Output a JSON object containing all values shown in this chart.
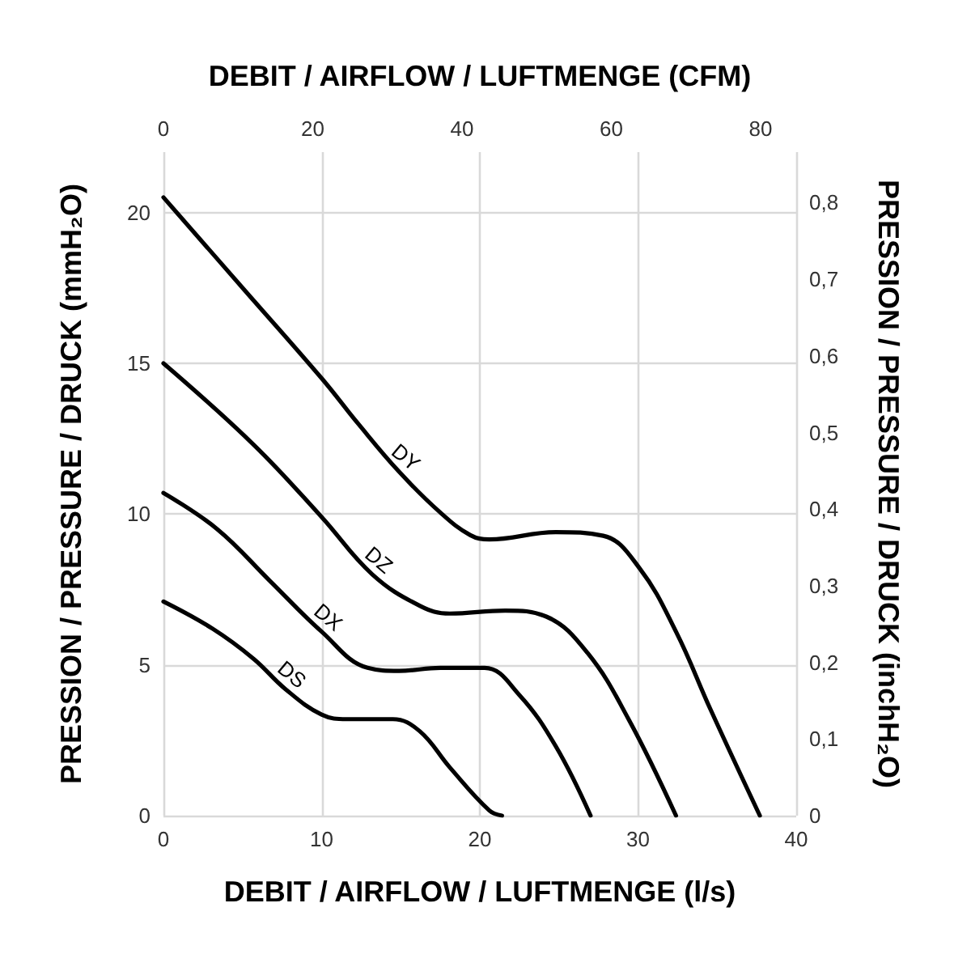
{
  "chart_data": {
    "type": "line",
    "xlabel": "DEBIT / AIRFLOW / LUFTMENGE (l/s)",
    "x2label": "DEBIT / AIRFLOW / LUFTMENGE (CFM)",
    "ylabel": "PRESSION / PRESSURE / DRUCK (mmH₂O)",
    "y2label": "PRESSION / PRESSURE / DRUCK (inchH₂O)",
    "xlim": [
      0,
      40
    ],
    "xticks": [
      0,
      10,
      20,
      30,
      40
    ],
    "x2lim": [
      0,
      84.76
    ],
    "x2ticks": [
      0,
      20,
      40,
      60,
      80
    ],
    "ylim": [
      0,
      22
    ],
    "yticks": [
      0,
      5,
      10,
      15,
      20
    ],
    "y2lim": [
      0,
      0.866
    ],
    "y2ticks": [
      0,
      {
        "value": 0.1,
        "label": "0,1"
      },
      {
        "value": 0.2,
        "label": "0,2"
      },
      {
        "value": 0.3,
        "label": "0,3"
      },
      {
        "value": 0.4,
        "label": "0,4"
      },
      {
        "value": 0.5,
        "label": "0,5"
      },
      {
        "value": 0.6,
        "label": "0,6"
      },
      {
        "value": 0.7,
        "label": "0,7"
      },
      {
        "value": 0.8,
        "label": "0,8"
      }
    ],
    "grid": true,
    "legend": false,
    "marker": "none",
    "line_style": "solid",
    "series": [
      {
        "name": "DY",
        "color": "#000000",
        "x": [
          0,
          5,
          10,
          12.3,
          14.9,
          17.5,
          19.4,
          20.6,
          24.8,
          27.8,
          30.1,
          32.4,
          34.6,
          37.7
        ],
        "values": [
          20.5,
          17.5,
          14.5,
          13.0,
          11.4,
          10.05,
          9.3,
          9.16,
          9.4,
          9.28,
          8.2,
          6.1,
          3.5,
          0
        ]
      },
      {
        "name": "DZ",
        "color": "#000000",
        "x": [
          0,
          5.7,
          10,
          13.2,
          16.2,
          18.1,
          21.6,
          24.2,
          26.8,
          29.4,
          32.4
        ],
        "values": [
          15.0,
          12.3,
          9.9,
          8.0,
          6.96,
          6.7,
          6.8,
          6.6,
          5.4,
          3.2,
          0
        ]
      },
      {
        "name": "DX",
        "color": "#000000",
        "x": [
          0,
          3.4,
          6.7,
          10,
          12.9,
          14.9,
          17.5,
          20.3,
          22.5,
          24.8,
          27
        ],
        "values": [
          10.7,
          9.5,
          7.8,
          6.1,
          4.9,
          4.8,
          4.9,
          4.9,
          4.0,
          2.3,
          0
        ]
      },
      {
        "name": "DS",
        "color": "#000000",
        "x": [
          0,
          3.1,
          5.7,
          7.7,
          10,
          11.6,
          14.5,
          16.2,
          18.1,
          20.6,
          21.4
        ],
        "values": [
          7.1,
          6.2,
          5.2,
          4.2,
          3.35,
          3.2,
          3.2,
          2.8,
          1.6,
          0.17,
          0
        ]
      }
    ]
  }
}
